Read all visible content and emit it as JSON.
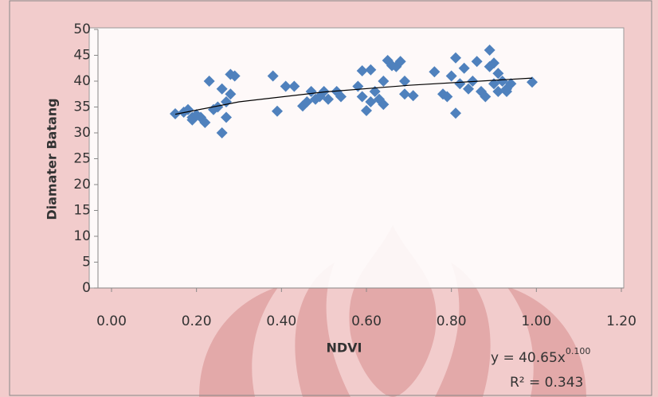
{
  "chart_data": {
    "type": "scatter",
    "x_label": "NDVI",
    "y_label": "Diamater Batang",
    "equation": "y = 40.65x",
    "equation_exponent": "0.100",
    "r_squared": "R² = 0.343",
    "color": "#4f81bd",
    "xlim": [
      0,
      1.2
    ],
    "xticks": [
      {
        "value": 0,
        "label": "0.00"
      },
      {
        "value": 0.2,
        "label": "0.20"
      },
      {
        "value": 0.4,
        "label": "0.40"
      },
      {
        "value": 0.6,
        "label": "0.60"
      },
      {
        "value": 0.8,
        "label": "0.80"
      },
      {
        "value": 1,
        "label": "1.00"
      },
      {
        "value": 1.2,
        "label": "1.20"
      }
    ],
    "ylim": [
      0,
      50
    ],
    "yticks": [
      0,
      5,
      10,
      15,
      20,
      25,
      30,
      35,
      40,
      45,
      50
    ],
    "x": [
      0.15,
      0.17,
      0.18,
      0.19,
      0.19,
      0.2,
      0.21,
      0.22,
      0.23,
      0.24,
      0.25,
      0.26,
      0.26,
      0.27,
      0.27,
      0.28,
      0.28,
      0.29,
      0.38,
      0.39,
      0.41,
      0.43,
      0.45,
      0.46,
      0.47,
      0.48,
      0.49,
      0.5,
      0.51,
      0.53,
      0.54,
      0.58,
      0.59,
      0.59,
      0.6,
      0.61,
      0.61,
      0.62,
      0.63,
      0.64,
      0.64,
      0.65,
      0.66,
      0.67,
      0.68,
      0.69,
      0.69,
      0.71,
      0.76,
      0.78,
      0.79,
      0.8,
      0.81,
      0.81,
      0.82,
      0.83,
      0.84,
      0.85,
      0.86,
      0.87,
      0.88,
      0.89,
      0.89,
      0.9,
      0.9,
      0.91,
      0.91,
      0.92,
      0.93,
      0.93,
      0.94,
      0.99
    ],
    "values": [
      33.7,
      34,
      34.5,
      33,
      32.5,
      33.5,
      33,
      32,
      40,
      34.5,
      35,
      30,
      38.5,
      33,
      36,
      37.5,
      41.3,
      41,
      41,
      34.2,
      39,
      39,
      35.2,
      36,
      38,
      36.5,
      37,
      38,
      36.5,
      38,
      37,
      39,
      42,
      37,
      34.3,
      36,
      42.2,
      38,
      36.5,
      35.5,
      40,
      44,
      43,
      42.8,
      43.8,
      37.5,
      40,
      37.2,
      41.8,
      37.5,
      37,
      41,
      44.5,
      33.8,
      39.5,
      42.5,
      38.5,
      40,
      43.8,
      38,
      37,
      46,
      42.8,
      43.5,
      39.5,
      41.5,
      38,
      40,
      38.5,
      38,
      39.5,
      39.8
    ],
    "trendline": {
      "color": "#000000",
      "x": [
        0.15,
        0.3,
        0.5,
        0.7,
        0.99
      ],
      "values": [
        33.6,
        36.0,
        37.9,
        39.2,
        40.6
      ]
    }
  }
}
